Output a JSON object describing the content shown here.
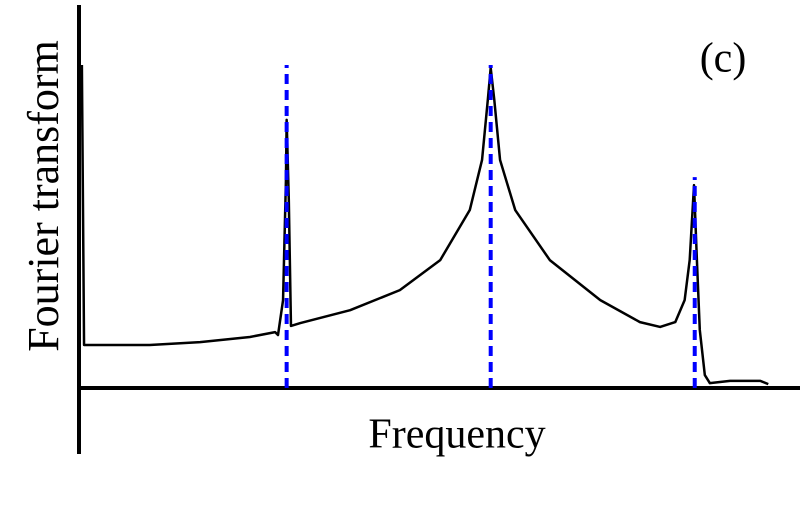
{
  "chart_data": {
    "type": "line",
    "annotation": "(c)",
    "x_label": "Frequency",
    "y_label": "Fourier transform",
    "xlim": [
      0,
      100
    ],
    "ylim": [
      0,
      100
    ],
    "series": [
      {
        "color": "#000000",
        "x": [
          0.4,
          0.7,
          9.8,
          16.8,
          23.7,
          27.2,
          27.6,
          28.3,
          28.7,
          28.8,
          29.1,
          29.4,
          30.7,
          37.6,
          44.5,
          50.1,
          54.2,
          55.9,
          56.7,
          57.1,
          57.6,
          58.4,
          60.5,
          65.3,
          72.3,
          77.8,
          80.6,
          82.7,
          84.0,
          84.7,
          85.3,
          85.7,
          86.1,
          86.8,
          87.5,
          90.3,
          94.5,
          95.6
        ],
        "values": [
          100,
          13.3,
          13.3,
          14.2,
          15.8,
          17.3,
          16.4,
          27.2,
          64.4,
          83.0,
          58.2,
          19.2,
          20.1,
          24.1,
          30.3,
          39.6,
          55.1,
          70.6,
          89.2,
          99.1,
          89.2,
          70.6,
          55.1,
          39.6,
          27.2,
          20.4,
          18.9,
          20.4,
          27.2,
          39.6,
          62.8,
          39.6,
          18.0,
          4.0,
          1.5,
          2.2,
          2.2,
          1.2
        ]
      }
    ],
    "vlines": {
      "color": "#0000ff",
      "x": [
        28.8,
        57.1,
        85.4
      ],
      "values": [
        100,
        100,
        65.3
      ]
    }
  }
}
